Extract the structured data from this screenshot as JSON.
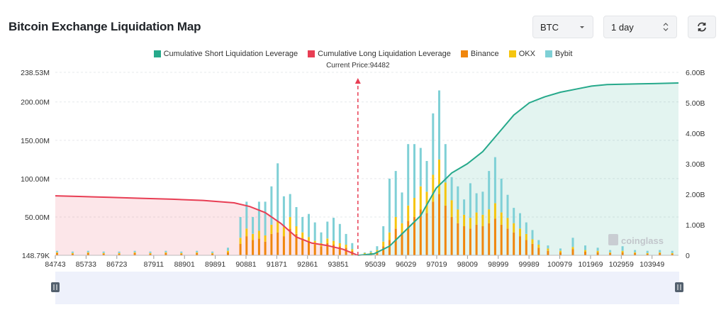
{
  "header": {
    "title": "Bitcoin Exchange Liquidation Map"
  },
  "controls": {
    "coin": "BTC",
    "range": "1 day",
    "coin_icon": "chevron-down-icon",
    "range_icon": "updown-chevron-icon",
    "refresh_icon": "refresh-icon"
  },
  "colors": {
    "short": "#26a98b",
    "long": "#e83e54",
    "binance": "#f0860c",
    "okx": "#f5c50f",
    "bybit": "#7fd0d6"
  },
  "watermark": "coinglass",
  "chart_data": {
    "type": "bar",
    "legend_position": "top",
    "current_price_label": "Current Price:94482",
    "current_price": 94482,
    "x_tick_labels": [
      "84743",
      "85733",
      "86723",
      "87911",
      "88901",
      "89891",
      "90881",
      "91871",
      "92861",
      "93851",
      "95039",
      "96029",
      "97019",
      "98009",
      "98999",
      "99989",
      "100979",
      "101969",
      "102959",
      "103949"
    ],
    "y_left_tick_labels": [
      "148.79K",
      "50.00M",
      "100.00M",
      "150.00M",
      "200.00M",
      "238.53M"
    ],
    "y_right_tick_labels": [
      "0",
      "1.00B",
      "2.00B",
      "3.00B",
      "4.00B",
      "5.00B",
      "6.00B"
    ],
    "ylim_left": [
      0.14879,
      238.53
    ],
    "ylim_right": [
      0,
      6.0
    ],
    "x_range": [
      84743,
      104800
    ],
    "grid": "horizontal dashed",
    "series": [
      {
        "name": "Cumulative Short Liquidation Leverage",
        "type": "area-line",
        "axis": "right",
        "points": [
          [
            94482,
            0
          ],
          [
            95000,
            0.05
          ],
          [
            95500,
            0.3
          ],
          [
            96000,
            0.8
          ],
          [
            96500,
            1.3
          ],
          [
            97000,
            2.2
          ],
          [
            97500,
            2.7
          ],
          [
            98000,
            3.0
          ],
          [
            98500,
            3.4
          ],
          [
            99000,
            4.0
          ],
          [
            99500,
            4.6
          ],
          [
            100000,
            5.0
          ],
          [
            100500,
            5.2
          ],
          [
            101000,
            5.35
          ],
          [
            101500,
            5.45
          ],
          [
            102000,
            5.55
          ],
          [
            102500,
            5.6
          ],
          [
            103000,
            5.61
          ],
          [
            103500,
            5.62
          ],
          [
            104000,
            5.63
          ],
          [
            104800,
            5.65
          ]
        ]
      },
      {
        "name": "Cumulative Long Liquidation Leverage",
        "type": "area-line",
        "axis": "right",
        "points": [
          [
            84743,
            1.95
          ],
          [
            85500,
            1.93
          ],
          [
            86500,
            1.9
          ],
          [
            87500,
            1.87
          ],
          [
            88500,
            1.84
          ],
          [
            89500,
            1.8
          ],
          [
            90500,
            1.72
          ],
          [
            91000,
            1.6
          ],
          [
            91500,
            1.4
          ],
          [
            92000,
            1.05
          ],
          [
            92500,
            0.6
          ],
          [
            93000,
            0.4
          ],
          [
            93500,
            0.32
          ],
          [
            94000,
            0.2
          ],
          [
            94482,
            0
          ]
        ]
      },
      {
        "name": "Binance",
        "type": "bar",
        "axis": "left",
        "x": [
          84800,
          85300,
          85800,
          86300,
          86800,
          87300,
          87800,
          88300,
          88800,
          89300,
          89800,
          90300,
          90700,
          90900,
          91100,
          91300,
          91500,
          91700,
          91900,
          92100,
          92300,
          92500,
          92700,
          92900,
          93100,
          93300,
          93500,
          93700,
          93900,
          94100,
          94300,
          94700,
          94900,
          95100,
          95300,
          95500,
          95700,
          95900,
          96100,
          96300,
          96500,
          96700,
          96900,
          97100,
          97300,
          97500,
          97700,
          97900,
          98100,
          98300,
          98500,
          98700,
          98900,
          99100,
          99300,
          99500,
          99700,
          99900,
          100100,
          100300,
          100600,
          101000,
          101400,
          101800,
          102200,
          102600,
          103000,
          103400,
          103800,
          104200,
          104600
        ],
        "values": [
          3,
          2,
          3,
          2,
          2,
          3,
          2,
          3,
          2,
          3,
          2,
          4,
          15,
          25,
          20,
          22,
          18,
          28,
          30,
          25,
          35,
          28,
          22,
          18,
          14,
          12,
          16,
          14,
          12,
          10,
          6,
          2,
          3,
          5,
          12,
          20,
          35,
          30,
          45,
          50,
          60,
          55,
          70,
          80,
          65,
          50,
          42,
          38,
          35,
          40,
          38,
          42,
          48,
          40,
          35,
          30,
          25,
          20,
          15,
          10,
          6,
          4,
          8,
          5,
          4,
          3,
          4,
          3,
          2,
          3,
          2
        ]
      },
      {
        "name": "OKX",
        "type": "bar",
        "axis": "left",
        "x": [
          84800,
          85300,
          85800,
          86300,
          86800,
          87300,
          87800,
          88300,
          88800,
          89300,
          89800,
          90300,
          90700,
          90900,
          91100,
          91300,
          91500,
          91700,
          91900,
          92100,
          92300,
          92500,
          92700,
          92900,
          93100,
          93300,
          93500,
          93700,
          93900,
          94100,
          94300,
          94700,
          94900,
          95100,
          95300,
          95500,
          95700,
          95900,
          96100,
          96300,
          96500,
          96700,
          96900,
          97100,
          97300,
          97500,
          97700,
          97900,
          98100,
          98300,
          98500,
          98700,
          98900,
          99100,
          99300,
          99500,
          99700,
          99900,
          100100,
          100300,
          100600,
          101000,
          101400,
          101800,
          102200,
          102600,
          103000,
          103400,
          103800,
          104200,
          104600
        ],
        "values": [
          1,
          1,
          1,
          1,
          1,
          1,
          1,
          1,
          1,
          1,
          1,
          2,
          8,
          10,
          8,
          10,
          8,
          12,
          15,
          12,
          15,
          10,
          8,
          6,
          5,
          4,
          6,
          5,
          4,
          4,
          2,
          1,
          1,
          2,
          6,
          10,
          15,
          12,
          20,
          25,
          30,
          28,
          35,
          45,
          30,
          22,
          18,
          15,
          14,
          16,
          15,
          18,
          20,
          16,
          14,
          12,
          10,
          8,
          6,
          4,
          3,
          2,
          3,
          2,
          2,
          1,
          2,
          1,
          1,
          1,
          1
        ]
      },
      {
        "name": "Bybit",
        "type": "bar",
        "axis": "left",
        "x": [
          84800,
          85300,
          85800,
          86300,
          86800,
          87300,
          87800,
          88300,
          88800,
          89300,
          89800,
          90300,
          90700,
          90900,
          91100,
          91300,
          91500,
          91700,
          91900,
          92100,
          92300,
          92500,
          92700,
          92900,
          93100,
          93300,
          93500,
          93700,
          93900,
          94100,
          94300,
          94700,
          94900,
          95100,
          95300,
          95500,
          95700,
          95900,
          96100,
          96300,
          96500,
          96700,
          96900,
          97100,
          97300,
          97500,
          97700,
          97900,
          98100,
          98300,
          98500,
          98700,
          98900,
          99100,
          99300,
          99500,
          99700,
          99900,
          100100,
          100300,
          100600,
          101000,
          101400,
          101800,
          102200,
          102600,
          103000,
          103400,
          103800,
          104200,
          104600
        ],
        "values": [
          2,
          2,
          2,
          2,
          2,
          2,
          2,
          2,
          2,
          2,
          2,
          4,
          27,
          35,
          22,
          38,
          44,
          50,
          75,
          40,
          30,
          25,
          20,
          30,
          24,
          14,
          22,
          30,
          25,
          14,
          8,
          1,
          2,
          5,
          20,
          70,
          60,
          40,
          80,
          70,
          50,
          40,
          80,
          90,
          50,
          30,
          30,
          20,
          45,
          25,
          30,
          50,
          60,
          44,
          30,
          20,
          20,
          15,
          12,
          6,
          4,
          3,
          12,
          6,
          4,
          3,
          6,
          3,
          3,
          3,
          3
        ]
      }
    ]
  }
}
